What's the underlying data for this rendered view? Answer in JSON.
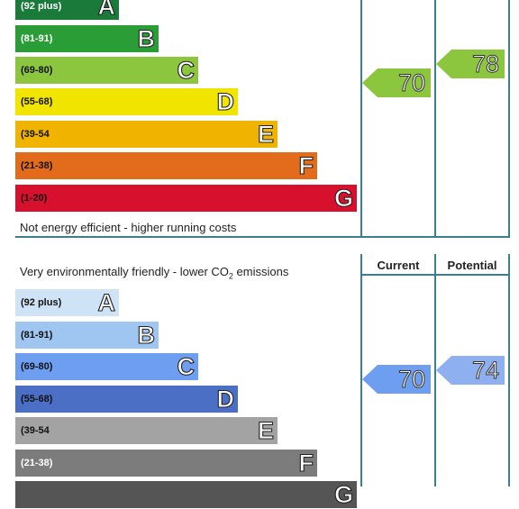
{
  "energy": {
    "bands": [
      {
        "range": "(92 plus)",
        "letter": "A",
        "color": "#1a7a3a",
        "text_color": "#ffffff"
      },
      {
        "range": "(81-91)",
        "letter": "B",
        "color": "#2a9d36",
        "text_color": "#ffffff"
      },
      {
        "range": "(69-80)",
        "letter": "C",
        "color": "#8cc63f",
        "text_color": "#111111"
      },
      {
        "range": "(55-68)",
        "letter": "D",
        "color": "#f1e500",
        "text_color": "#111111"
      },
      {
        "range": "(39-54",
        "letter": "E",
        "color": "#f0b400",
        "text_color": "#111111"
      },
      {
        "range": "(21-38)",
        "letter": "F",
        "color": "#e36b1c",
        "text_color": "#111111"
      },
      {
        "range": "(1-20)",
        "letter": "G",
        "color": "#d7102d",
        "text_color": "#111111"
      }
    ],
    "footer_text": "Not energy efficient - higher running costs",
    "current": {
      "value": "70",
      "color": "#8cc63f"
    },
    "potential": {
      "value": "78",
      "color": "#8cc63f"
    }
  },
  "environmental": {
    "header_text_before": "Very environmentally friendly - lower CO",
    "header_text_sub": "2",
    "header_text_after": " emissions",
    "column_current": "Current",
    "column_potential": "Potential",
    "bands": [
      {
        "range": "(92 plus)",
        "letter": "A",
        "color": "#cfe3f6",
        "text_color": "#111111"
      },
      {
        "range": "(81-91)",
        "letter": "B",
        "color": "#9fc6f0",
        "text_color": "#111111"
      },
      {
        "range": "(69-80)",
        "letter": "C",
        "color": "#6e9ef0",
        "text_color": "#111111"
      },
      {
        "range": "(55-68)",
        "letter": "D",
        "color": "#4a6fc4",
        "text_color": "#111111"
      },
      {
        "range": "(39-54",
        "letter": "E",
        "color": "#a3a3a3",
        "text_color": "#111111"
      },
      {
        "range": "(21-38)",
        "letter": "F",
        "color": "#7c7c7c",
        "text_color": "#ffffff"
      },
      {
        "range": "",
        "letter": "G",
        "color": "#555555",
        "text_color": "#ffffff"
      }
    ],
    "current": {
      "value": "70",
      "color": "#6e9ef0"
    },
    "potential": {
      "value": "74",
      "color": "#8fb0f0"
    }
  }
}
